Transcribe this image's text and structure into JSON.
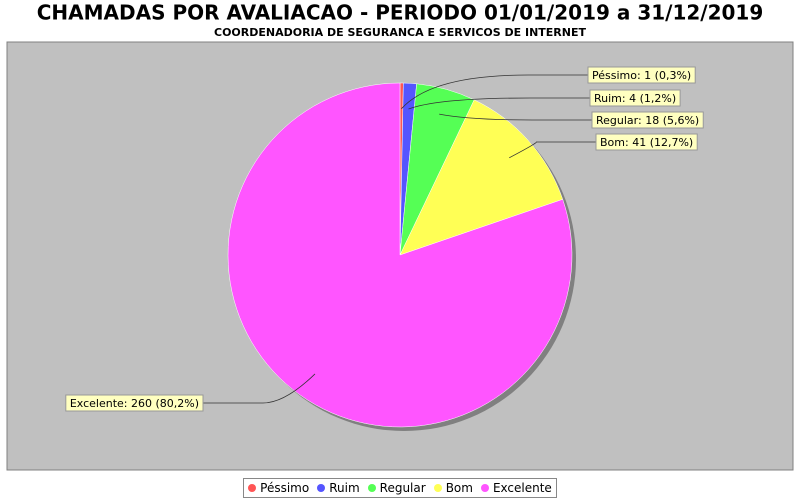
{
  "chart_data": {
    "type": "pie",
    "title": "CHAMADAS POR AVALIACAO - PERIODO 01/01/2019 a 31/12/2019",
    "subtitle": "COORDENADORIA DE SEGURANCA E SERVICOS DE INTERNET",
    "categories": [
      "Péssimo",
      "Ruim",
      "Regular",
      "Bom",
      "Excelente"
    ],
    "values": [
      1,
      4,
      18,
      41,
      260
    ],
    "value_labels": [
      "Péssimo: 1 (0,3%)",
      "Ruim: 4 (1,2%)",
      "Regular: 18 (5,6%)",
      "Bom: 41 (12,7%)",
      "Excelente: 260 (80,2%)"
    ],
    "colors": [
      "#ff5555",
      "#5555ff",
      "#55ff55",
      "#ffff55",
      "#ff55ff"
    ],
    "legend": "bottom"
  }
}
